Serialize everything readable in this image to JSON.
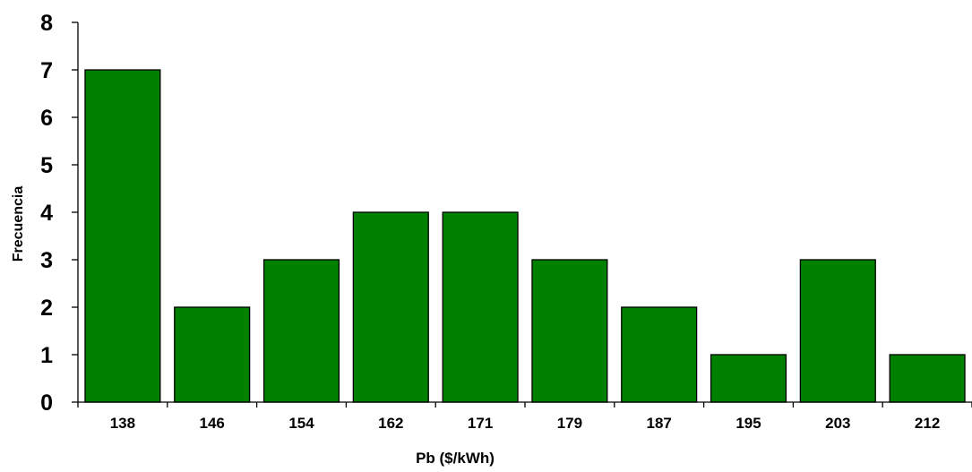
{
  "chart_data": {
    "type": "bar",
    "categories": [
      "138",
      "146",
      "154",
      "162",
      "171",
      "179",
      "187",
      "195",
      "203",
      "212"
    ],
    "values": [
      7,
      2,
      3,
      4,
      4,
      3,
      2,
      1,
      3,
      1
    ],
    "xlabel": "Pb ($/kWh)",
    "ylabel": "Frecuencia",
    "ylim": [
      0,
      8
    ],
    "yticks": [
      "0",
      "1",
      "2",
      "3",
      "4",
      "5",
      "6",
      "7",
      "8"
    ],
    "grid": false,
    "legend": "none",
    "bar_color": "#008000"
  }
}
